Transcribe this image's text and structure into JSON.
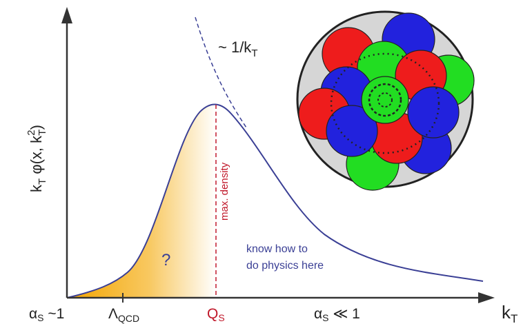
{
  "y_axis_label": {
    "k": "k",
    "k_sub": "T",
    "mid": " φ(x, k",
    "mid_sub": "T",
    "mid_sup": "2",
    "end": ")"
  },
  "x_axis_label": {
    "k": "k",
    "k_sub": "T"
  },
  "curve_annotation": {
    "text": "~ 1/k",
    "sub": "T"
  },
  "peak_annotation": "max. density",
  "unknown_region": "?",
  "known_region": [
    "know how to",
    "do physics here"
  ],
  "x_markers": [
    {
      "main": "α",
      "sub": "S",
      "rest": " ~1"
    },
    {
      "main": "Λ",
      "sub": "QCD"
    },
    {
      "main": "Q",
      "sub": "S"
    },
    {
      "main": "α",
      "sub": "S",
      "rest": " ≪ 1"
    }
  ]
}
